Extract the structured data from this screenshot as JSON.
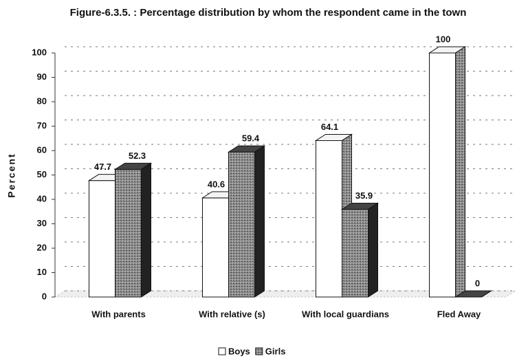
{
  "chart_data": {
    "type": "bar3d",
    "title": "Figure-6.3.5. : Percentage distribution by whom the respondent came in the town",
    "y_label": "Percent",
    "categories": [
      "With parents",
      "With relative (s)",
      "With local guardians",
      "Fled Away"
    ],
    "series": [
      {
        "name": "Boys",
        "color": "#ffffff",
        "values": [
          47.7,
          40.6,
          64.1,
          100
        ]
      },
      {
        "name": "Girls",
        "color": "#7a7a7a",
        "values": [
          52.3,
          59.4,
          35.9,
          0
        ]
      }
    ],
    "ylim": [
      0,
      100
    ],
    "yticks": [
      0,
      10,
      20,
      30,
      40,
      50,
      60,
      70,
      80,
      90,
      100
    ],
    "grid": true,
    "legend": "bottom"
  }
}
